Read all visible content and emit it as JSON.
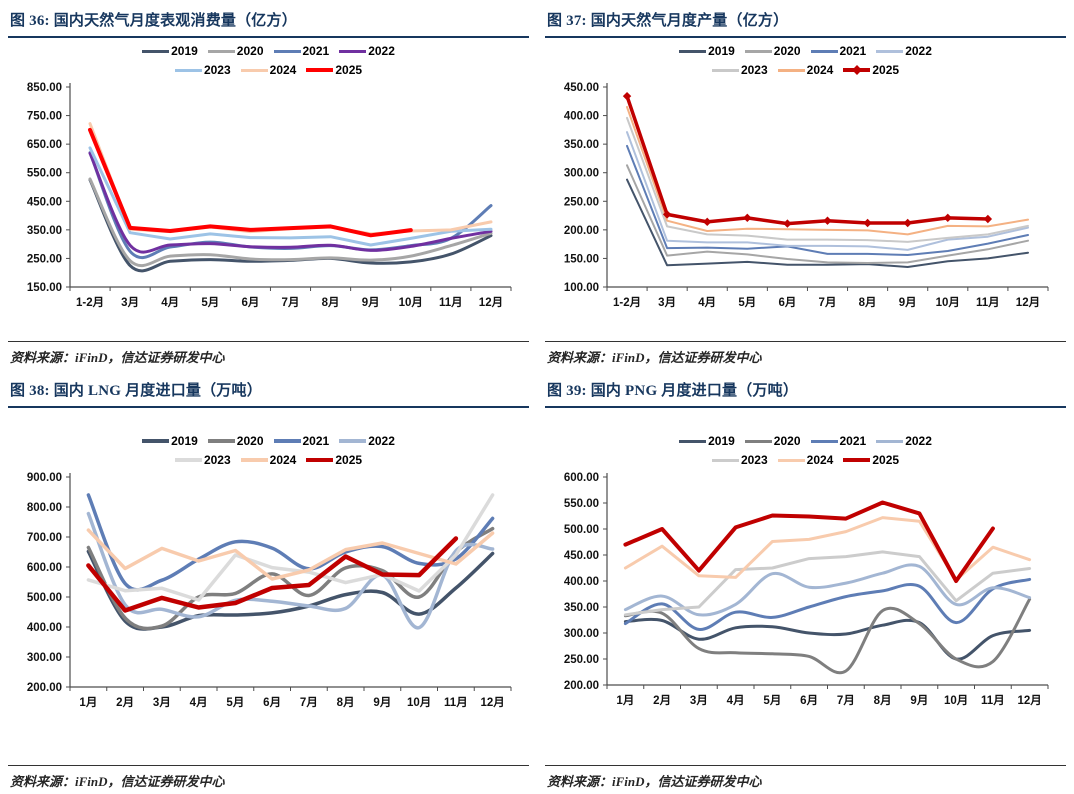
{
  "chart_data": [
    {
      "id": "fig36",
      "type": "line",
      "title": "图 36: 国内天然气月度表观消费量（亿方）",
      "source": "资料来源：iFinD，信达证券研发中心",
      "categories": [
        "1-2月",
        "3月",
        "4月",
        "5月",
        "6月",
        "7月",
        "8月",
        "9月",
        "10月",
        "11月",
        "12月"
      ],
      "ylim": [
        150,
        850
      ],
      "ytick_step": 100,
      "grid": false,
      "legend_position": "top",
      "series": [
        {
          "name": "2019",
          "color": "#44546A",
          "width": 3,
          "smooth": true,
          "values": [
            525,
            225,
            240,
            246,
            240,
            243,
            250,
            234,
            238,
            265,
            330
          ]
        },
        {
          "name": "2020",
          "color": "#A6A6A6",
          "width": 3,
          "smooth": true,
          "values": [
            528,
            242,
            258,
            263,
            248,
            246,
            252,
            244,
            258,
            295,
            338
          ]
        },
        {
          "name": "2021",
          "color": "#5E7DB5",
          "width": 3,
          "smooth": true,
          "values": [
            620,
            275,
            290,
            307,
            290,
            285,
            295,
            280,
            295,
            320,
            435
          ]
        },
        {
          "name": "2022",
          "color": "#7030A0",
          "width": 3,
          "smooth": true,
          "values": [
            618,
            296,
            297,
            302,
            291,
            289,
            296,
            278,
            292,
            320,
            345
          ]
        },
        {
          "name": "2023",
          "color": "#9DC3E6",
          "width": 3,
          "smooth": false,
          "values": [
            637,
            340,
            318,
            336,
            323,
            322,
            326,
            297,
            320,
            345,
            352
          ]
        },
        {
          "name": "2024",
          "color": "#F8CBAD",
          "width": 3,
          "smooth": false,
          "values": [
            722,
            352,
            344,
            360,
            344,
            354,
            360,
            336,
            346,
            350,
            378
          ]
        },
        {
          "name": "2025",
          "color": "#FF0000",
          "width": 4,
          "smooth": false,
          "values": [
            700,
            357,
            346,
            362,
            350,
            356,
            362,
            331,
            349
          ]
        }
      ]
    },
    {
      "id": "fig37",
      "type": "line",
      "title": "图 37: 国内天然气月度产量（亿方）",
      "source": "资料来源：iFinD，信达证券研发中心",
      "categories": [
        "1-2月",
        "3月",
        "4月",
        "5月",
        "6月",
        "7月",
        "8月",
        "9月",
        "10月",
        "11月",
        "12月"
      ],
      "ylim": [
        100,
        450
      ],
      "ytick_step": 50,
      "grid": false,
      "legend_position": "top",
      "series": [
        {
          "name": "2019",
          "color": "#44546A",
          "width": 2,
          "smooth": false,
          "values": [
            288,
            138,
            141,
            144,
            139,
            139,
            140,
            135,
            145,
            150,
            160
          ]
        },
        {
          "name": "2020",
          "color": "#A6A6A6",
          "width": 2,
          "smooth": false,
          "values": [
            313,
            155,
            162,
            157,
            149,
            143,
            142,
            143,
            155,
            166,
            181
          ]
        },
        {
          "name": "2021",
          "color": "#5E7DB5",
          "width": 2,
          "smooth": false,
          "values": [
            347,
            168,
            169,
            167,
            171,
            158,
            158,
            156,
            163,
            176,
            191
          ]
        },
        {
          "name": "2022",
          "color": "#AFC0DC",
          "width": 2,
          "smooth": false,
          "values": [
            371,
            181,
            178,
            178,
            172,
            172,
            171,
            165,
            183,
            188,
            204
          ]
        },
        {
          "name": "2023",
          "color": "#C9C9C9",
          "width": 2,
          "smooth": false,
          "values": [
            396,
            206,
            192,
            190,
            183,
            183,
            182,
            179,
            186,
            192,
            207
          ]
        },
        {
          "name": "2024",
          "color": "#F4B183",
          "width": 2,
          "smooth": false,
          "values": [
            415,
            216,
            198,
            202,
            201,
            200,
            199,
            192,
            207,
            206,
            218
          ]
        },
        {
          "name": "2025",
          "color": "#C00000",
          "width": 3.5,
          "smooth": false,
          "marker": "diamond",
          "values": [
            434,
            227,
            214,
            221,
            211,
            216,
            212,
            212,
            221,
            219
          ]
        }
      ]
    },
    {
      "id": "fig38",
      "type": "line",
      "title": "图 38: 国内 LNG 月度进口量（万吨）",
      "source": "资料来源：iFinD，信达证券研发中心",
      "categories": [
        "1月",
        "2月",
        "3月",
        "4月",
        "5月",
        "6月",
        "7月",
        "8月",
        "9月",
        "10月",
        "11月",
        "12月"
      ],
      "ylim": [
        200,
        900
      ],
      "ytick_step": 100,
      "grid": false,
      "legend_position": "top",
      "series": [
        {
          "name": "2019",
          "color": "#44546A",
          "width": 3.5,
          "smooth": true,
          "values": [
            652,
            420,
            400,
            438,
            440,
            447,
            470,
            508,
            515,
            443,
            530,
            645
          ]
        },
        {
          "name": "2020",
          "color": "#7F7F7F",
          "width": 3.5,
          "smooth": true,
          "values": [
            665,
            430,
            403,
            500,
            512,
            577,
            505,
            597,
            588,
            500,
            650,
            728
          ]
        },
        {
          "name": "2021",
          "color": "#5E7DB5",
          "width": 3.5,
          "smooth": true,
          "values": [
            840,
            545,
            556,
            626,
            684,
            663,
            594,
            650,
            668,
            612,
            627,
            762
          ]
        },
        {
          "name": "2022",
          "color": "#A3B6D3",
          "width": 3.5,
          "smooth": true,
          "values": [
            778,
            474,
            459,
            434,
            489,
            486,
            470,
            462,
            573,
            398,
            654,
            660
          ]
        },
        {
          "name": "2023",
          "color": "#DBDBDB",
          "width": 3.5,
          "smooth": false,
          "values": [
            557,
            521,
            529,
            490,
            640,
            598,
            583,
            548,
            575,
            520,
            640,
            840
          ]
        },
        {
          "name": "2024",
          "color": "#F8CBAD",
          "width": 3.5,
          "smooth": false,
          "values": [
            723,
            595,
            662,
            620,
            655,
            560,
            590,
            658,
            680,
            645,
            610,
            713
          ]
        },
        {
          "name": "2025",
          "color": "#C00000",
          "width": 4.5,
          "smooth": false,
          "values": [
            605,
            455,
            497,
            465,
            480,
            530,
            540,
            635,
            575,
            573,
            695
          ]
        }
      ]
    },
    {
      "id": "fig39",
      "type": "line",
      "title": "图 39: 国内 PNG 月度进口量（万吨）",
      "source": "资料来源：iFinD，信达证券研发中心",
      "categories": [
        "1月",
        "2月",
        "3月",
        "4月",
        "5月",
        "6月",
        "7月",
        "8月",
        "9月",
        "10月",
        "11月",
        "12月"
      ],
      "ylim": [
        200,
        600
      ],
      "ytick_step": 50,
      "grid": false,
      "legend_position": "top",
      "series": [
        {
          "name": "2019",
          "color": "#44546A",
          "width": 3,
          "smooth": true,
          "values": [
            322,
            324,
            288,
            310,
            312,
            300,
            298,
            315,
            320,
            250,
            295,
            305
          ]
        },
        {
          "name": "2020",
          "color": "#7F7F7F",
          "width": 3,
          "smooth": true,
          "values": [
            333,
            338,
            270,
            262,
            260,
            255,
            227,
            343,
            318,
            250,
            245,
            365
          ]
        },
        {
          "name": "2021",
          "color": "#5E7DB5",
          "width": 3,
          "smooth": true,
          "values": [
            318,
            356,
            307,
            340,
            330,
            350,
            370,
            381,
            390,
            320,
            385,
            403
          ]
        },
        {
          "name": "2022",
          "color": "#A3B6D3",
          "width": 3,
          "smooth": true,
          "values": [
            345,
            371,
            335,
            355,
            414,
            388,
            396,
            415,
            428,
            355,
            387,
            368
          ]
        },
        {
          "name": "2023",
          "color": "#CCCCCC",
          "width": 3,
          "smooth": false,
          "values": [
            335,
            345,
            350,
            422,
            425,
            443,
            447,
            456,
            447,
            362,
            415,
            424
          ]
        },
        {
          "name": "2024",
          "color": "#F8CBAD",
          "width": 3,
          "smooth": false,
          "values": [
            425,
            467,
            410,
            407,
            476,
            480,
            495,
            522,
            515,
            402,
            465,
            441
          ]
        },
        {
          "name": "2025",
          "color": "#C00000",
          "width": 4,
          "smooth": false,
          "values": [
            470,
            500,
            420,
            503,
            526,
            524,
            520,
            551,
            530,
            400,
            501
          ]
        }
      ]
    }
  ]
}
